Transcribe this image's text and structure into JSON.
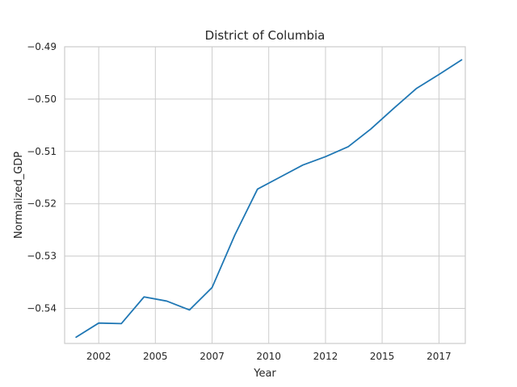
{
  "chart_data": {
    "type": "line",
    "title": "District of Columbia",
    "xlabel": "Year",
    "ylabel": "Normalized_GDP",
    "xlim": [
      "2000-07-01",
      "2018-03-01"
    ],
    "ylim": [
      -0.5467,
      -0.49
    ],
    "x_ticks": [
      {
        "value": "2002-01-01",
        "label": "2002"
      },
      {
        "value": "2004-07-01",
        "label": "2005"
      },
      {
        "value": "2007-01-01",
        "label": "2007"
      },
      {
        "value": "2009-07-01",
        "label": "2010"
      },
      {
        "value": "2012-01-01",
        "label": "2012"
      },
      {
        "value": "2014-07-01",
        "label": "2015"
      },
      {
        "value": "2017-01-01",
        "label": "2017"
      }
    ],
    "y_ticks": [
      {
        "value": -0.54,
        "label": "−0.54"
      },
      {
        "value": -0.53,
        "label": "−0.53"
      },
      {
        "value": -0.52,
        "label": "−0.52"
      },
      {
        "value": -0.51,
        "label": "−0.51"
      },
      {
        "value": -0.5,
        "label": "−0.50"
      },
      {
        "value": -0.49,
        "label": "−0.49"
      }
    ],
    "grid": true,
    "series": [
      {
        "color": "#1f77b4",
        "x": [
          "2001-01-01",
          "2002-01-01",
          "2003-01-01",
          "2004-01-01",
          "2005-01-01",
          "2006-01-01",
          "2007-01-01",
          "2008-01-01",
          "2009-01-01",
          "2010-01-01",
          "2011-01-01",
          "2012-01-01",
          "2013-01-01",
          "2014-01-01",
          "2015-01-01",
          "2016-01-01",
          "2017-01-01",
          "2018-01-01"
        ],
        "values": [
          -0.5455,
          -0.5428,
          -0.5429,
          -0.5378,
          -0.5386,
          -0.5403,
          -0.536,
          -0.526,
          -0.5172,
          -0.5149,
          -0.5126,
          -0.511,
          -0.5091,
          -0.5057,
          -0.5018,
          -0.498,
          -0.4953,
          -0.4925
        ]
      }
    ]
  }
}
